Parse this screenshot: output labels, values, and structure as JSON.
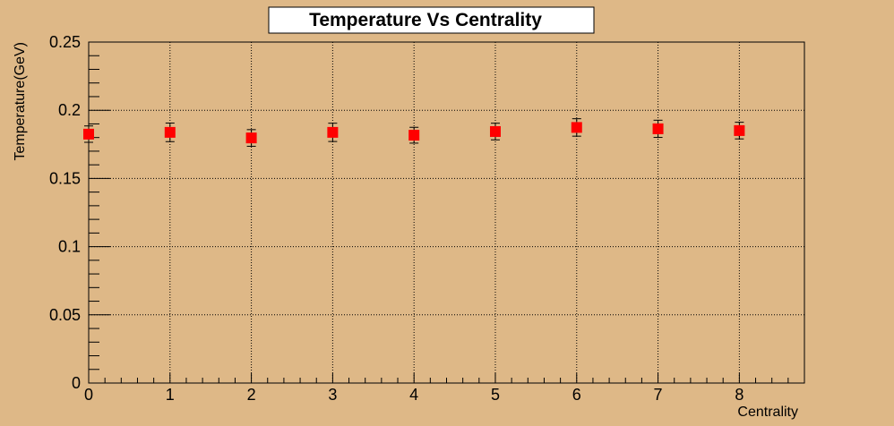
{
  "colors": {
    "background": "#deb887",
    "marker": "#ff0000",
    "axis": "#000000",
    "title_box": "#ffffff"
  },
  "chart_data": {
    "type": "scatter",
    "title": "Temperature Vs Centrality",
    "xlabel": "Centrality",
    "ylabel": "Temperature(GeV)",
    "xlim": [
      0,
      8.8
    ],
    "ylim": [
      0,
      0.25
    ],
    "grid": true,
    "x_ticks": [
      0,
      1,
      2,
      3,
      4,
      5,
      6,
      7,
      8
    ],
    "x_tick_labels": [
      "0",
      "1",
      "2",
      "3",
      "4",
      "5",
      "6",
      "7",
      "8"
    ],
    "y_ticks": [
      0,
      0.05,
      0.1,
      0.15,
      0.2,
      0.25
    ],
    "y_tick_labels": [
      "0",
      "0.05",
      "0.1",
      "0.15",
      "0.2",
      "0.25"
    ],
    "series": [
      {
        "marker": "square",
        "x": [
          0,
          1,
          2,
          3,
          4,
          5,
          6,
          7,
          8
        ],
        "y": [
          0.1825,
          0.1838,
          0.1797,
          0.1838,
          0.1817,
          0.1844,
          0.1874,
          0.1864,
          0.1851
        ],
        "yerr": [
          0.006,
          0.0068,
          0.0061,
          0.0067,
          0.0058,
          0.0061,
          0.0064,
          0.0063,
          0.0061
        ]
      }
    ]
  }
}
